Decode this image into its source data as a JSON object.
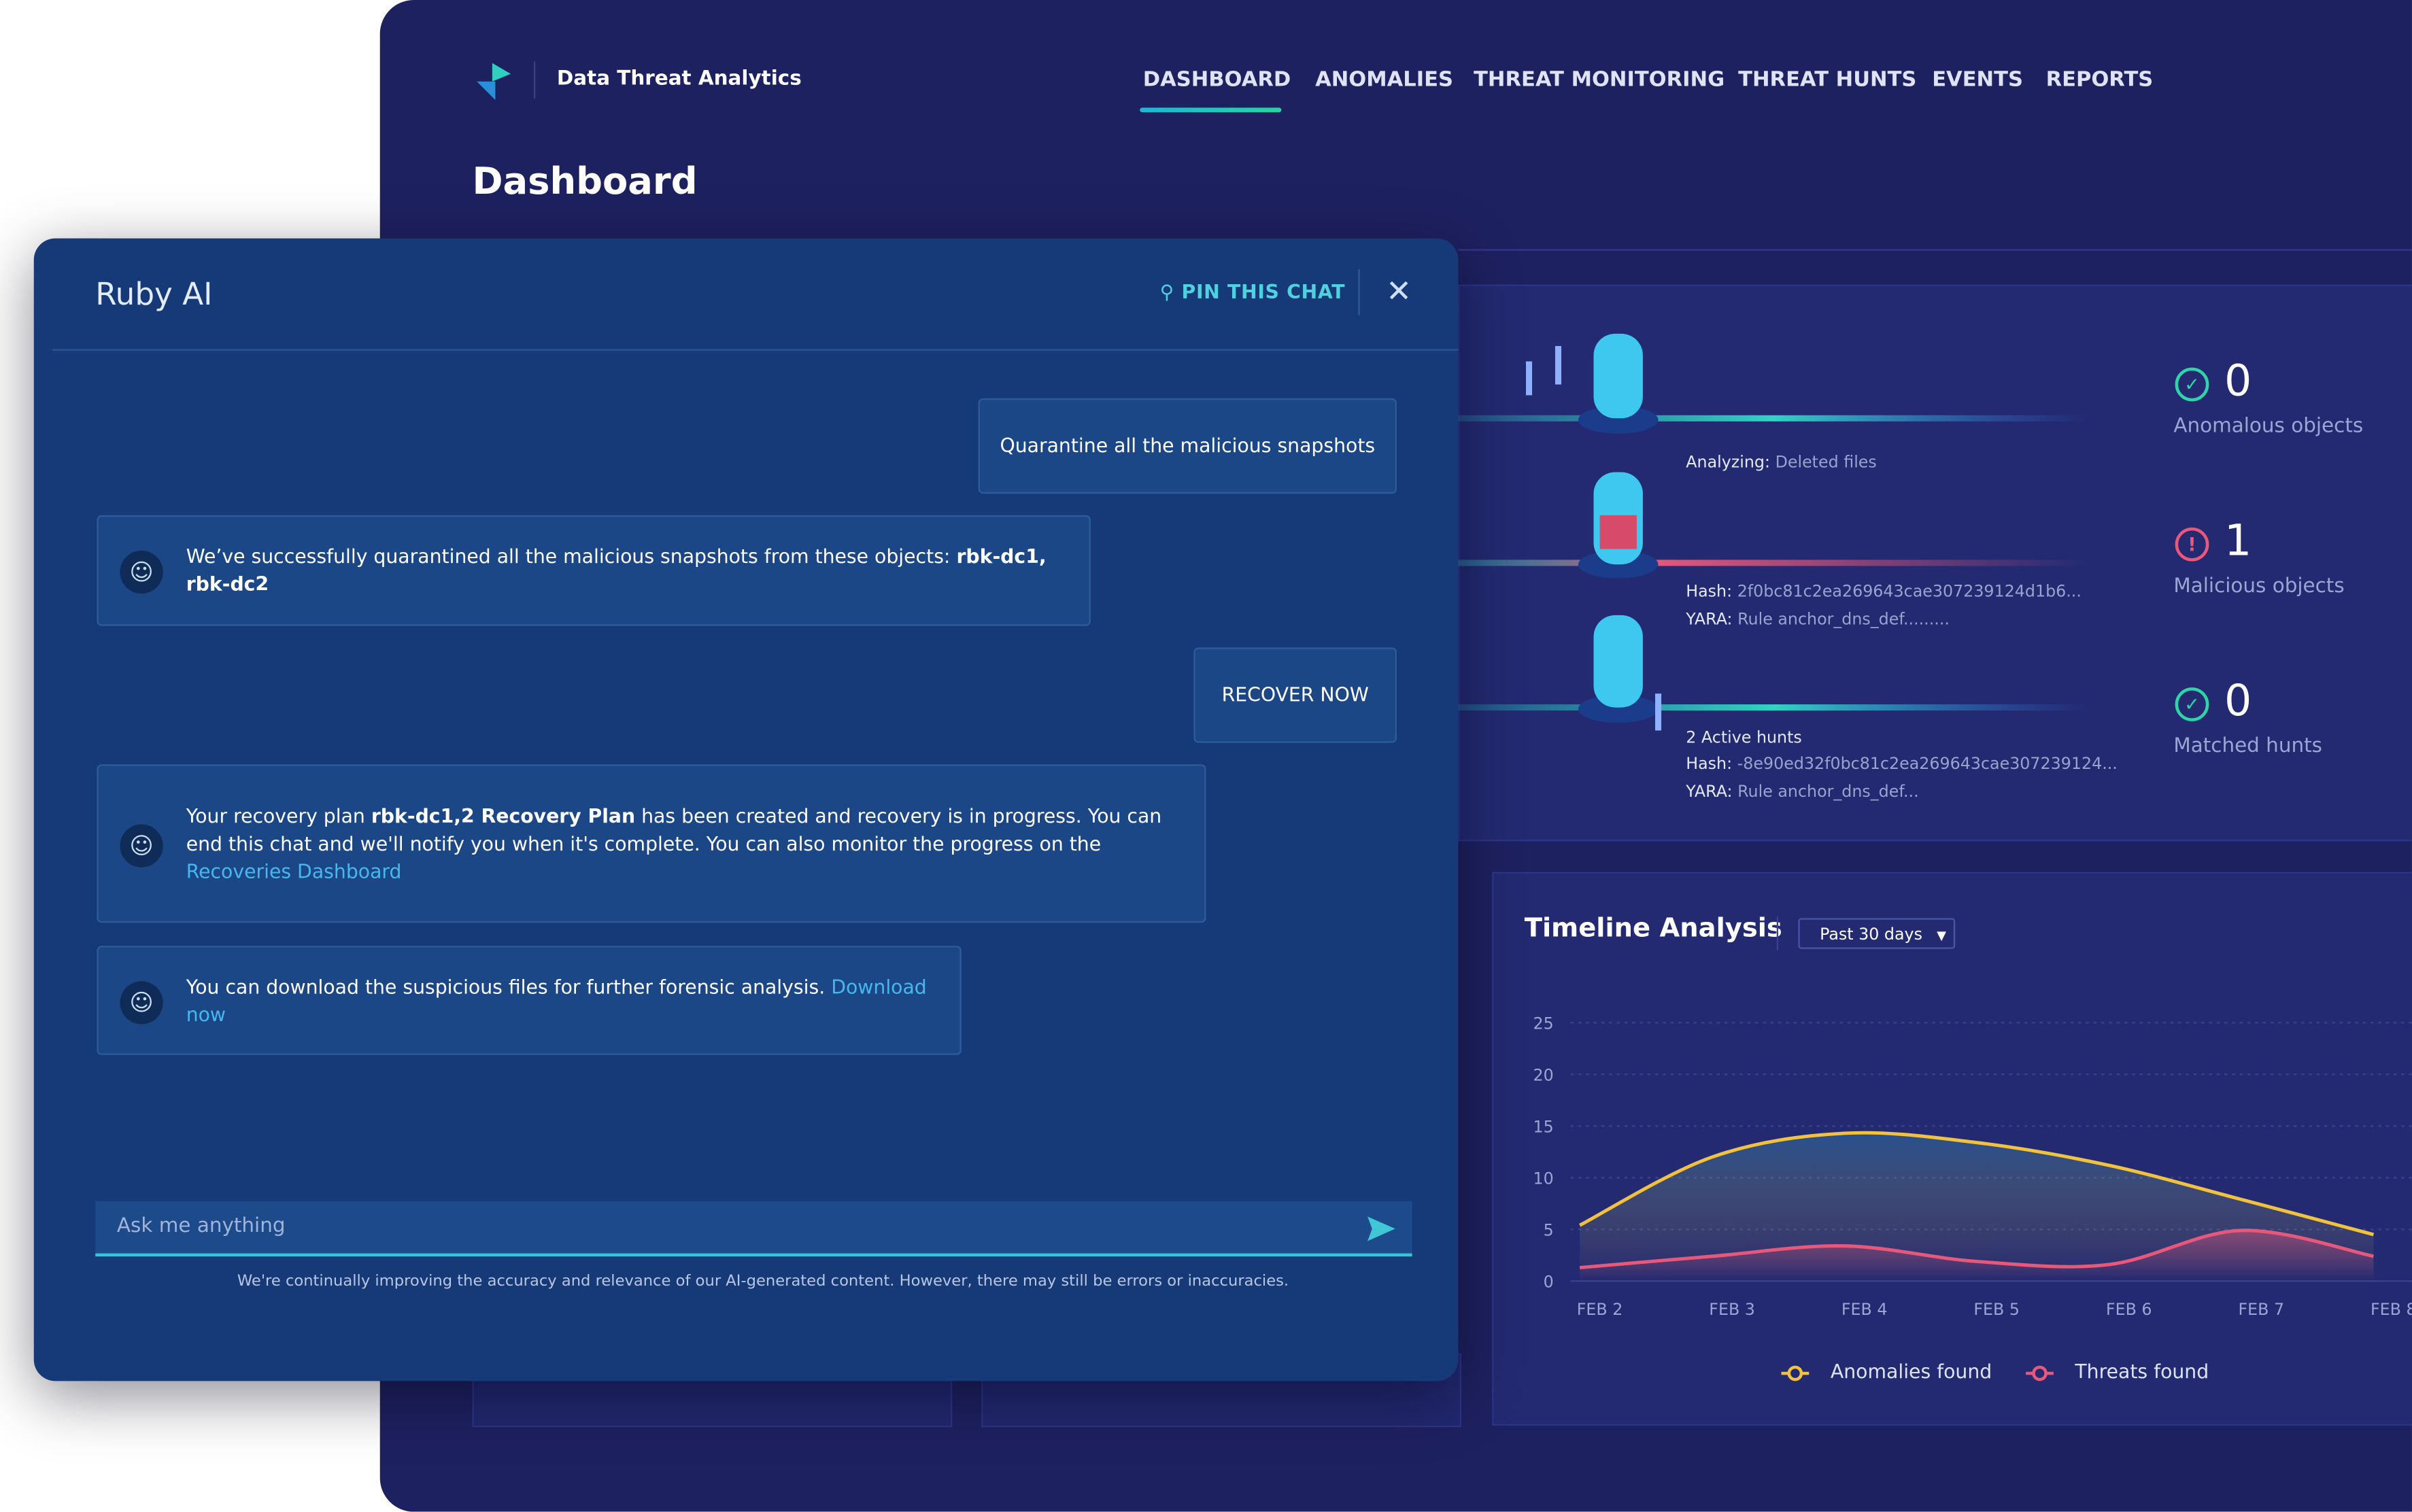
{
  "app": {
    "brand": "Data Threat Analytics",
    "nav": [
      "DASHBOARD",
      "ANOMALIES",
      "THREAT MONITORING",
      "THREAT HUNTS",
      "EVENTS",
      "REPORTS"
    ],
    "page_title": "Dashboard"
  },
  "pipeline": {
    "analyzing_label": "Analyzing:",
    "analyzing_value": "Deleted files",
    "hash1_label": "Hash:",
    "hash1": "2f0bc81c2ea269643cae307239124d1b6...",
    "yara1_label": "YARA:",
    "yara1": "Rule anchor_dns_def.........",
    "hunts": "2 Active hunts",
    "hash2_label": "Hash:",
    "hash2": "-8e90ed32f0bc81c2ea269643cae307239124...",
    "yara2_label": "YARA:",
    "yara2": "Rule anchor_dns_def..."
  },
  "stats": [
    {
      "value": 0,
      "label": "Anomalous objects"
    },
    {
      "value": 1,
      "label": "Malicious objects"
    },
    {
      "value": 0,
      "label": "Matched hunts"
    }
  ],
  "chat": {
    "title": "Ruby AI",
    "pin": "PIN THIS CHAT",
    "messages": [
      {
        "from": "user",
        "parts": [
          {
            "text": "Quarantine all the malicious snapshots"
          }
        ]
      },
      {
        "from": "bot",
        "parts": [
          {
            "text": "We’ve successfully quarantined all the malicious snapshots from these objects: "
          },
          {
            "text": "rbk-dc1, rbk-dc2",
            "bold": true
          }
        ]
      },
      {
        "from": "user",
        "parts": [
          {
            "text": "RECOVER NOW"
          }
        ]
      },
      {
        "from": "bot",
        "parts": [
          {
            "text": "Your recovery plan "
          },
          {
            "text": "rbk-dc1,2 Recovery Plan",
            "bold": true
          },
          {
            "text": " has been created and recovery is in progress. You can end this chat and we'll notify you when it's complete.  You can also monitor the progress on the "
          },
          {
            "text": "Recoveries Dashboard",
            "link": true
          }
        ]
      },
      {
        "from": "bot",
        "parts": [
          {
            "text": "You can download the suspicious files for further forensic analysis. "
          },
          {
            "text": "Download now",
            "link": true
          }
        ]
      }
    ],
    "input_placeholder": "Ask me anything",
    "disclaimer": "We're continually improving the accuracy and relevance of our AI-generated content. However, there may still be errors or inaccuracies."
  },
  "chart_data": {
    "type": "line",
    "title": "Timeline Analysis",
    "filter": "Past 30 days",
    "categories": [
      "FEB 2",
      "FEB 3",
      "FEB 4",
      "FEB 5",
      "FEB 6",
      "FEB 7",
      "FEB 8"
    ],
    "series": [
      {
        "name": "Anomalies found",
        "color": "#f2c23e",
        "values": [
          5.4,
          12,
          14.3,
          13.4,
          11.2,
          7.9,
          4.5
        ]
      },
      {
        "name": "Threats found",
        "color": "#e8587a",
        "values": [
          1.3,
          2.4,
          3.4,
          1.9,
          1.6,
          4.9,
          2.4
        ]
      }
    ],
    "ylim": [
      0,
      25
    ],
    "yticks": [
      0,
      5,
      10,
      15,
      20,
      25
    ],
    "grid": true
  }
}
